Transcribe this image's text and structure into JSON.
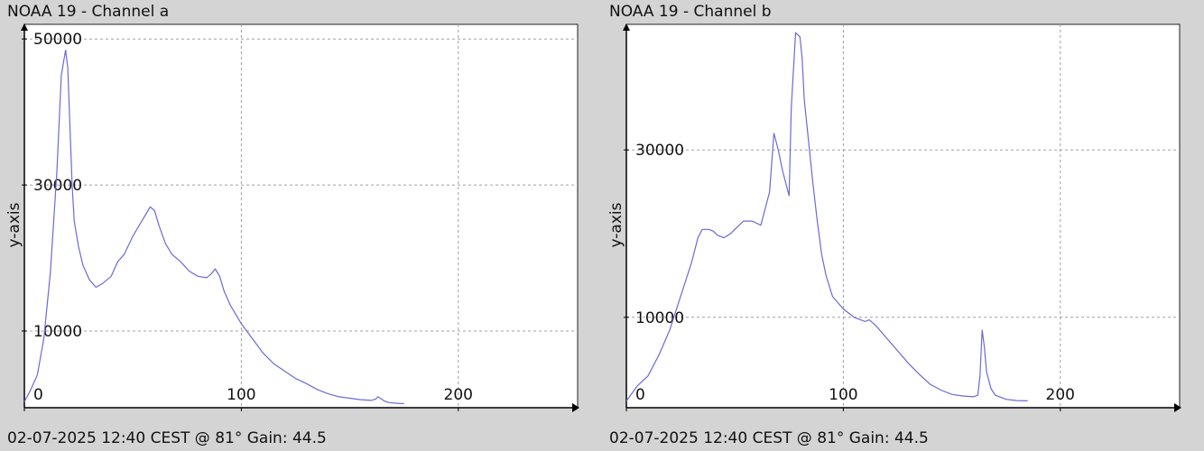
{
  "panels": [
    {
      "title": "NOAA 19 - Channel a",
      "footer": "02-07-2025 12:40 CEST @ 81° Gain: 44.5"
    },
    {
      "title": "NOAA 19 - Channel b",
      "footer": "02-07-2025 12:40 CEST @ 81° Gain: 44.5"
    }
  ],
  "colors": {
    "line": "#6a6ad8",
    "plot_bg": "#ffffff",
    "page_bg": "#d4d4d4",
    "grid": "#a0a0a0"
  },
  "chart_data": [
    {
      "type": "line",
      "title": "NOAA 19 - Channel a",
      "xlabel": "",
      "ylabel": "y-axis",
      "xlim": [
        0,
        255
      ],
      "ylim": [
        -500,
        52000
      ],
      "x_ticks": [
        0,
        100,
        200
      ],
      "y_ticks": [
        10000,
        30000,
        50000
      ],
      "grid": true,
      "series": [
        {
          "x": [
            0,
            3,
            6,
            9,
            12,
            15,
            17,
            19,
            20,
            21,
            22,
            23,
            25,
            27,
            30,
            33,
            36,
            40,
            43,
            46,
            50,
            54,
            58,
            60,
            62,
            65,
            68,
            72,
            76,
            80,
            84,
            86,
            88,
            90,
            92,
            95,
            100,
            105,
            110,
            115,
            120,
            125,
            130,
            135,
            140,
            145,
            150,
            155,
            160,
            162,
            163,
            164,
            166,
            168,
            172,
            175
          ],
          "y": [
            300,
            2000,
            4000,
            9000,
            18000,
            32000,
            45000,
            48500,
            46000,
            38000,
            30000,
            25000,
            21500,
            19000,
            17000,
            16000,
            16500,
            17500,
            19500,
            20500,
            23000,
            25000,
            27000,
            26500,
            24500,
            22000,
            20500,
            19500,
            18200,
            17500,
            17300,
            17800,
            18500,
            17500,
            15500,
            13500,
            11000,
            9000,
            7000,
            5500,
            4500,
            3500,
            2800,
            2000,
            1400,
            1000,
            800,
            600,
            500,
            700,
            1000,
            800,
            400,
            200,
            100,
            50
          ]
        }
      ]
    },
    {
      "type": "line",
      "title": "NOAA 19 - Channel b",
      "xlabel": "",
      "ylabel": "y-axis",
      "xlim": [
        0,
        255
      ],
      "ylim": [
        -800,
        45000
      ],
      "x_ticks": [
        0,
        100,
        200
      ],
      "y_ticks": [
        10000,
        30000
      ],
      "grid": true,
      "series": [
        {
          "x": [
            0,
            5,
            10,
            15,
            20,
            25,
            30,
            33,
            35,
            38,
            40,
            42,
            45,
            48,
            50,
            54,
            58,
            62,
            66,
            68,
            70,
            72,
            74,
            75,
            76,
            78,
            80,
            81,
            82,
            84,
            86,
            88,
            90,
            92,
            95,
            100,
            105,
            110,
            112,
            115,
            120,
            125,
            130,
            135,
            140,
            145,
            150,
            155,
            160,
            162,
            163,
            164,
            165,
            166,
            168,
            170,
            175,
            180,
            185
          ],
          "y": [
            0,
            1800,
            3000,
            5500,
            8500,
            12500,
            16500,
            19500,
            20500,
            20500,
            20300,
            19800,
            19500,
            20000,
            20500,
            21500,
            21500,
            21000,
            25000,
            32000,
            30000,
            27500,
            25500,
            24500,
            35000,
            44000,
            43500,
            41000,
            36000,
            31000,
            26000,
            21500,
            17500,
            15000,
            12500,
            11000,
            10000,
            9500,
            9700,
            9000,
            7500,
            6000,
            4500,
            3200,
            2000,
            1300,
            800,
            600,
            500,
            700,
            3000,
            8500,
            6500,
            3500,
            1500,
            700,
            200,
            50,
            20
          ]
        }
      ]
    }
  ]
}
